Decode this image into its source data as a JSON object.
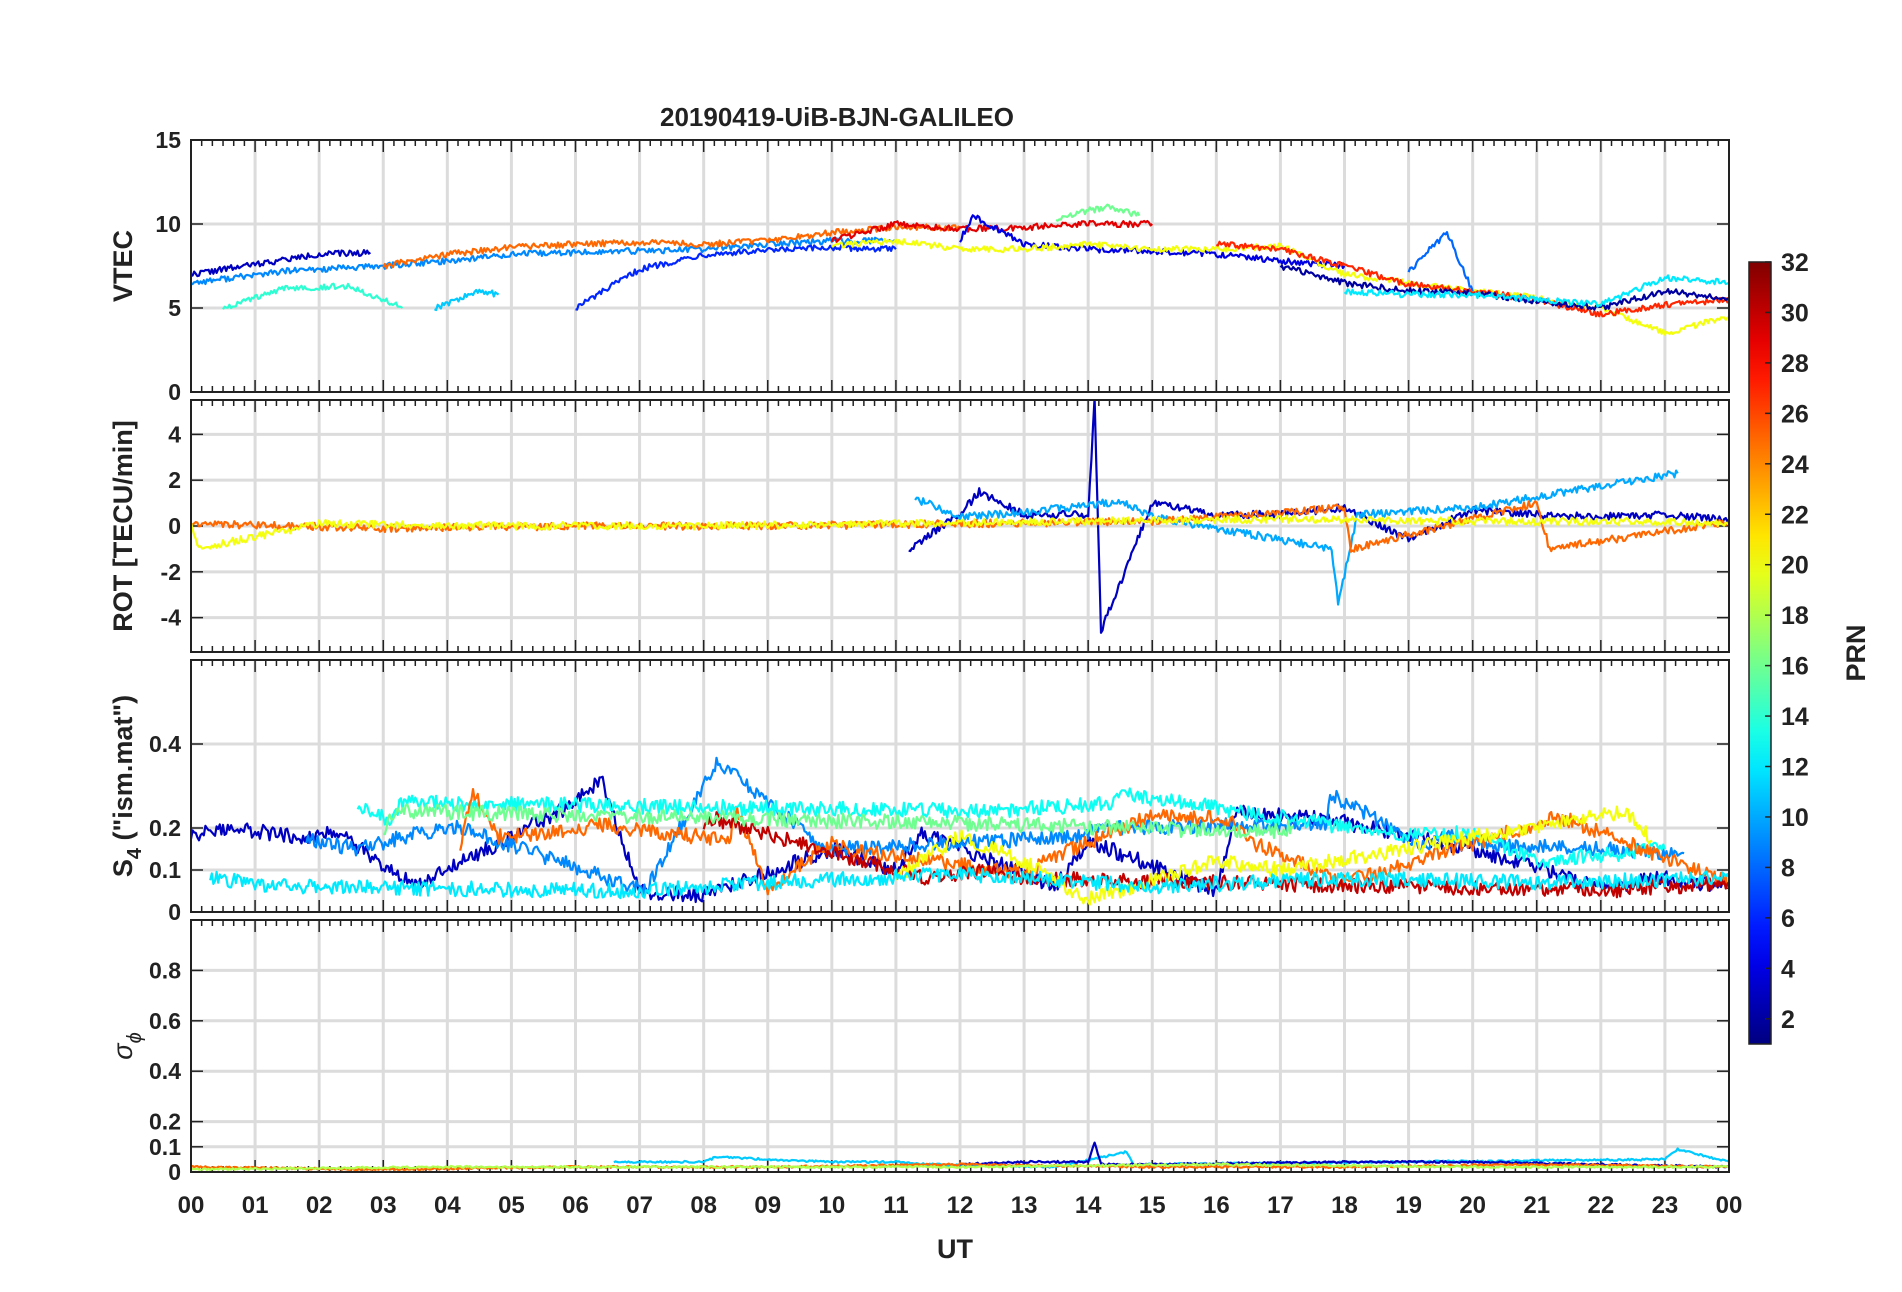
{
  "figure": {
    "title": "20190419-UiB-BJN-GALILEO",
    "xlabel": "UT",
    "x_ticks": [
      "00",
      "01",
      "02",
      "03",
      "04",
      "05",
      "06",
      "07",
      "08",
      "09",
      "10",
      "11",
      "12",
      "13",
      "14",
      "15",
      "16",
      "17",
      "18",
      "19",
      "20",
      "21",
      "22",
      "23",
      "00"
    ],
    "colorbar": {
      "label": "PRN",
      "range": [
        1,
        32
      ],
      "ticks": [
        "2",
        "4",
        "6",
        "8",
        "10",
        "12",
        "14",
        "16",
        "18",
        "20",
        "22",
        "24",
        "26",
        "28",
        "30",
        "32"
      ],
      "colormap": "jet"
    },
    "grid": true
  },
  "chart_data": [
    {
      "type": "line",
      "panel": "vtec",
      "ylabel": "VTEC",
      "xlim": [
        0,
        24
      ],
      "ylim": [
        0,
        15
      ],
      "yticks": [
        "0",
        "5",
        "10",
        "15"
      ],
      "series": [
        {
          "prn": 3,
          "x": [
            0,
            1,
            2,
            2.8
          ],
          "y": [
            7.0,
            7.6,
            8.2,
            8.3
          ]
        },
        {
          "prn": 9,
          "x": [
            0,
            1.5,
            3,
            4,
            5,
            6,
            7,
            8,
            9,
            10,
            11
          ],
          "y": [
            6.5,
            7.2,
            7.5,
            7.8,
            8.2,
            8.3,
            8.4,
            8.5,
            8.8,
            9.0,
            9.0
          ]
        },
        {
          "prn": 14,
          "x": [
            0.5,
            1.5,
            2.5,
            3.3
          ],
          "y": [
            5.0,
            6.2,
            6.3,
            5.0
          ]
        },
        {
          "prn": 25,
          "x": [
            3,
            4,
            5,
            6,
            7,
            8,
            9,
            10,
            11,
            12
          ],
          "y": [
            7.5,
            8.2,
            8.6,
            8.8,
            8.9,
            8.8,
            9.0,
            9.5,
            9.8,
            9.8
          ]
        },
        {
          "prn": 11,
          "x": [
            3.8,
            4.5,
            4.8
          ],
          "y": [
            5.0,
            6.0,
            5.8
          ]
        },
        {
          "prn": 6,
          "x": [
            6,
            7,
            8,
            9,
            10,
            11
          ],
          "y": [
            5.0,
            7.3,
            8.2,
            8.4,
            8.6,
            8.5
          ]
        },
        {
          "prn": 29,
          "x": [
            10,
            11,
            12,
            13,
            14,
            15
          ],
          "y": [
            9.0,
            10.0,
            9.7,
            9.8,
            10.0,
            10.0
          ]
        },
        {
          "prn": 4,
          "x": [
            12,
            12.2,
            13,
            14,
            15,
            16,
            17,
            18
          ],
          "y": [
            9.0,
            10.5,
            8.8,
            8.5,
            8.4,
            8.2,
            7.8,
            7.5
          ]
        },
        {
          "prn": 20,
          "x": [
            10,
            11,
            12,
            13,
            14,
            15,
            16,
            17,
            18,
            19,
            20,
            21,
            22,
            23,
            24
          ],
          "y": [
            8.7,
            9.0,
            8.5,
            8.5,
            8.8,
            8.5,
            8.5,
            8.7,
            7.0,
            6.5,
            6.0,
            5.6,
            5.0,
            3.5,
            4.5
          ]
        },
        {
          "prn": 16,
          "x": [
            13.5,
            14,
            14.3,
            14.8
          ],
          "y": [
            10.3,
            10.8,
            11.0,
            10.5
          ]
        },
        {
          "prn": 27,
          "x": [
            16,
            17,
            18,
            19,
            20,
            21,
            22,
            23,
            24
          ],
          "y": [
            8.8,
            8.5,
            7.5,
            6.4,
            6.0,
            5.5,
            4.6,
            5.2,
            5.5
          ]
        },
        {
          "prn": 2,
          "x": [
            17,
            18,
            19,
            20,
            21,
            22,
            23,
            24
          ],
          "y": [
            7.5,
            6.5,
            6.0,
            5.9,
            5.4,
            5.0,
            6.0,
            5.6
          ]
        },
        {
          "prn": 12,
          "x": [
            18,
            19,
            20,
            21,
            22,
            23,
            24
          ],
          "y": [
            6.0,
            5.8,
            5.8,
            5.5,
            5.2,
            6.8,
            6.5
          ]
        },
        {
          "prn": 8,
          "x": [
            19,
            19.6,
            20
          ],
          "y": [
            7.2,
            9.5,
            6.0
          ]
        }
      ]
    },
    {
      "type": "line",
      "panel": "rot",
      "ylabel": "ROT [TECU/min]",
      "xlim": [
        0,
        24
      ],
      "ylim": [
        -5.5,
        5.5
      ],
      "yticks": [
        "-4",
        "-2",
        "0",
        "2",
        "4"
      ],
      "series": [
        {
          "prn": 3,
          "x": [
            11.2,
            12,
            12.3,
            13,
            14,
            14.1,
            14.2,
            15,
            16,
            17,
            18,
            19,
            20,
            21,
            22,
            23,
            24
          ],
          "y": [
            -1.0,
            0.5,
            1.5,
            0.5,
            0.5,
            5.5,
            -4.6,
            1.0,
            0.5,
            0.5,
            0.8,
            -0.6,
            0.7,
            0.5,
            0.4,
            0.5,
            0.3
          ]
        },
        {
          "prn": 10,
          "x": [
            11.3,
            12,
            13,
            14,
            14.5,
            15,
            17.8,
            17.9,
            18.2,
            20,
            23.2
          ],
          "y": [
            1.2,
            0.4,
            0.6,
            0.9,
            1.1,
            0.4,
            -1.0,
            -3.4,
            0.5,
            0.8,
            2.3
          ]
        },
        {
          "prn": 25,
          "x": [
            0,
            3,
            6,
            9,
            12,
            15,
            18,
            18.1,
            21,
            21.2,
            24
          ],
          "y": [
            0.1,
            -0.1,
            0.0,
            0.0,
            0.1,
            0.2,
            0.8,
            -1.0,
            1.0,
            -1.0,
            0.2
          ]
        },
        {
          "prn": 20,
          "x": [
            0,
            0.1,
            2,
            5,
            8,
            11,
            14,
            17,
            20,
            23,
            24
          ],
          "y": [
            0.2,
            -1.0,
            0.1,
            0.0,
            0.0,
            0.1,
            0.2,
            0.3,
            0.2,
            0.2,
            0.1
          ]
        }
      ]
    },
    {
      "type": "line",
      "panel": "s4",
      "ylabel": "S4 (\"ism.mat\")",
      "ylabel_base": "S",
      "ylabel_sub": "4",
      "ylabel_rest": " (\"ism.mat\")",
      "xlim": [
        0,
        24
      ],
      "ylim": [
        0,
        0.6
      ],
      "yticks": [
        "0",
        "0.1",
        "0.2",
        "0.4"
      ],
      "series": [
        {
          "prn": 3,
          "x": [
            0,
            0.6,
            1.7,
            2.3,
            3.5,
            6.0,
            6.4,
            7.0,
            8.0,
            10.0,
            11.0,
            11.4,
            13.5,
            14.0,
            16.0,
            16.3,
            17.8,
            19.0,
            20.0,
            22.0,
            23.0,
            24.0
          ],
          "y": [
            0.18,
            0.2,
            0.18,
            0.19,
            0.06,
            0.26,
            0.32,
            0.05,
            0.04,
            0.15,
            0.1,
            0.19,
            0.06,
            0.17,
            0.05,
            0.24,
            0.22,
            0.18,
            0.15,
            0.06,
            0.08,
            0.06
          ]
        },
        {
          "prn": 9,
          "x": [
            1.8,
            2.6,
            3.6,
            4.2,
            7.1,
            8.2,
            9.9,
            13.9,
            14.1,
            17.7,
            17.8,
            19.2,
            19.6,
            20.3,
            23.3
          ],
          "y": [
            0.17,
            0.15,
            0.19,
            0.2,
            0.05,
            0.36,
            0.15,
            0.18,
            0.2,
            0.21,
            0.28,
            0.16,
            0.18,
            0.16,
            0.14
          ]
        },
        {
          "prn": 13,
          "x": [
            2.6,
            3.1,
            3.3,
            12.4,
            14.4,
            14.6,
            19.0,
            20.0,
            21.0,
            23.0
          ],
          "y": [
            0.25,
            0.22,
            0.26,
            0.24,
            0.26,
            0.28,
            0.18,
            0.19,
            0.12,
            0.15
          ]
        },
        {
          "prn": 25,
          "x": [
            4.2,
            4.4,
            4.8,
            6.0,
            6.3,
            8.4,
            8.5,
            9.0,
            10.0,
            10.2,
            13.1,
            13.3,
            15.0,
            16.2,
            16.5,
            18.0,
            21.0,
            21.3,
            24.0
          ],
          "y": [
            0.15,
            0.29,
            0.18,
            0.19,
            0.21,
            0.17,
            0.25,
            0.05,
            0.17,
            0.15,
            0.09,
            0.12,
            0.23,
            0.22,
            0.17,
            0.07,
            0.21,
            0.23,
            0.07
          ]
        },
        {
          "prn": 30,
          "x": [
            8.0,
            8.2,
            10.5,
            11.5,
            12.5,
            13.0,
            22.0,
            24.0
          ],
          "y": [
            0.2,
            0.22,
            0.12,
            0.08,
            0.1,
            0.08,
            0.05,
            0.07
          ]
        },
        {
          "prn": 20,
          "x": [
            11.0,
            12.0,
            13.0,
            14.0,
            16.0,
            17.0,
            22.4,
            22.8
          ],
          "y": [
            0.08,
            0.18,
            0.12,
            0.03,
            0.12,
            0.1,
            0.24,
            0.17
          ]
        },
        {
          "prn": 16,
          "x": [
            3.0,
            3.2,
            12.3,
            16.8,
            17.2
          ],
          "y": [
            0.19,
            0.24,
            0.21,
            0.19,
            0.2
          ]
        },
        {
          "prn": 12,
          "x": [
            0.3,
            1.5,
            7.0,
            9.0,
            12.0,
            15.0,
            18.0,
            21.0,
            24.0
          ],
          "y": [
            0.08,
            0.06,
            0.05,
            0.07,
            0.09,
            0.06,
            0.08,
            0.07,
            0.08
          ]
        }
      ]
    },
    {
      "type": "line",
      "panel": "sigma_phi",
      "ylabel": "σ ϕ",
      "ylabel_base": "σ",
      "ylabel_sub": "ϕ",
      "xlim": [
        0,
        24
      ],
      "ylim": [
        0,
        1.0
      ],
      "yticks": [
        "0",
        "0.1",
        "0.2",
        "0.4",
        "0.6",
        "0.8"
      ],
      "series": [
        {
          "prn": 11,
          "x": [
            6.6,
            8.0,
            8.2,
            9.0,
            10.0,
            11.0,
            11.5,
            13.5,
            14.6,
            14.7,
            23.0,
            23.2,
            24.0
          ],
          "y": [
            0.04,
            0.04,
            0.06,
            0.05,
            0.04,
            0.04,
            0.03,
            0.02,
            0.08,
            0.03,
            0.05,
            0.09,
            0.04
          ]
        },
        {
          "prn": 3,
          "x": [
            12.0,
            13.0,
            14.0,
            14.1,
            14.2,
            15.0,
            18.0,
            20.0,
            24.0
          ],
          "y": [
            0.03,
            0.04,
            0.04,
            0.12,
            0.03,
            0.03,
            0.04,
            0.04,
            0.02
          ]
        },
        {
          "prn": 25,
          "x": [
            0,
            3,
            6,
            9,
            12,
            15,
            18,
            21,
            24
          ],
          "y": [
            0.02,
            0.01,
            0.02,
            0.02,
            0.03,
            0.02,
            0.02,
            0.03,
            0.02
          ]
        },
        {
          "prn": 18,
          "x": [
            0,
            4,
            8,
            12,
            16,
            20,
            24
          ],
          "y": [
            0.01,
            0.02,
            0.02,
            0.02,
            0.03,
            0.02,
            0.02
          ]
        }
      ]
    }
  ]
}
